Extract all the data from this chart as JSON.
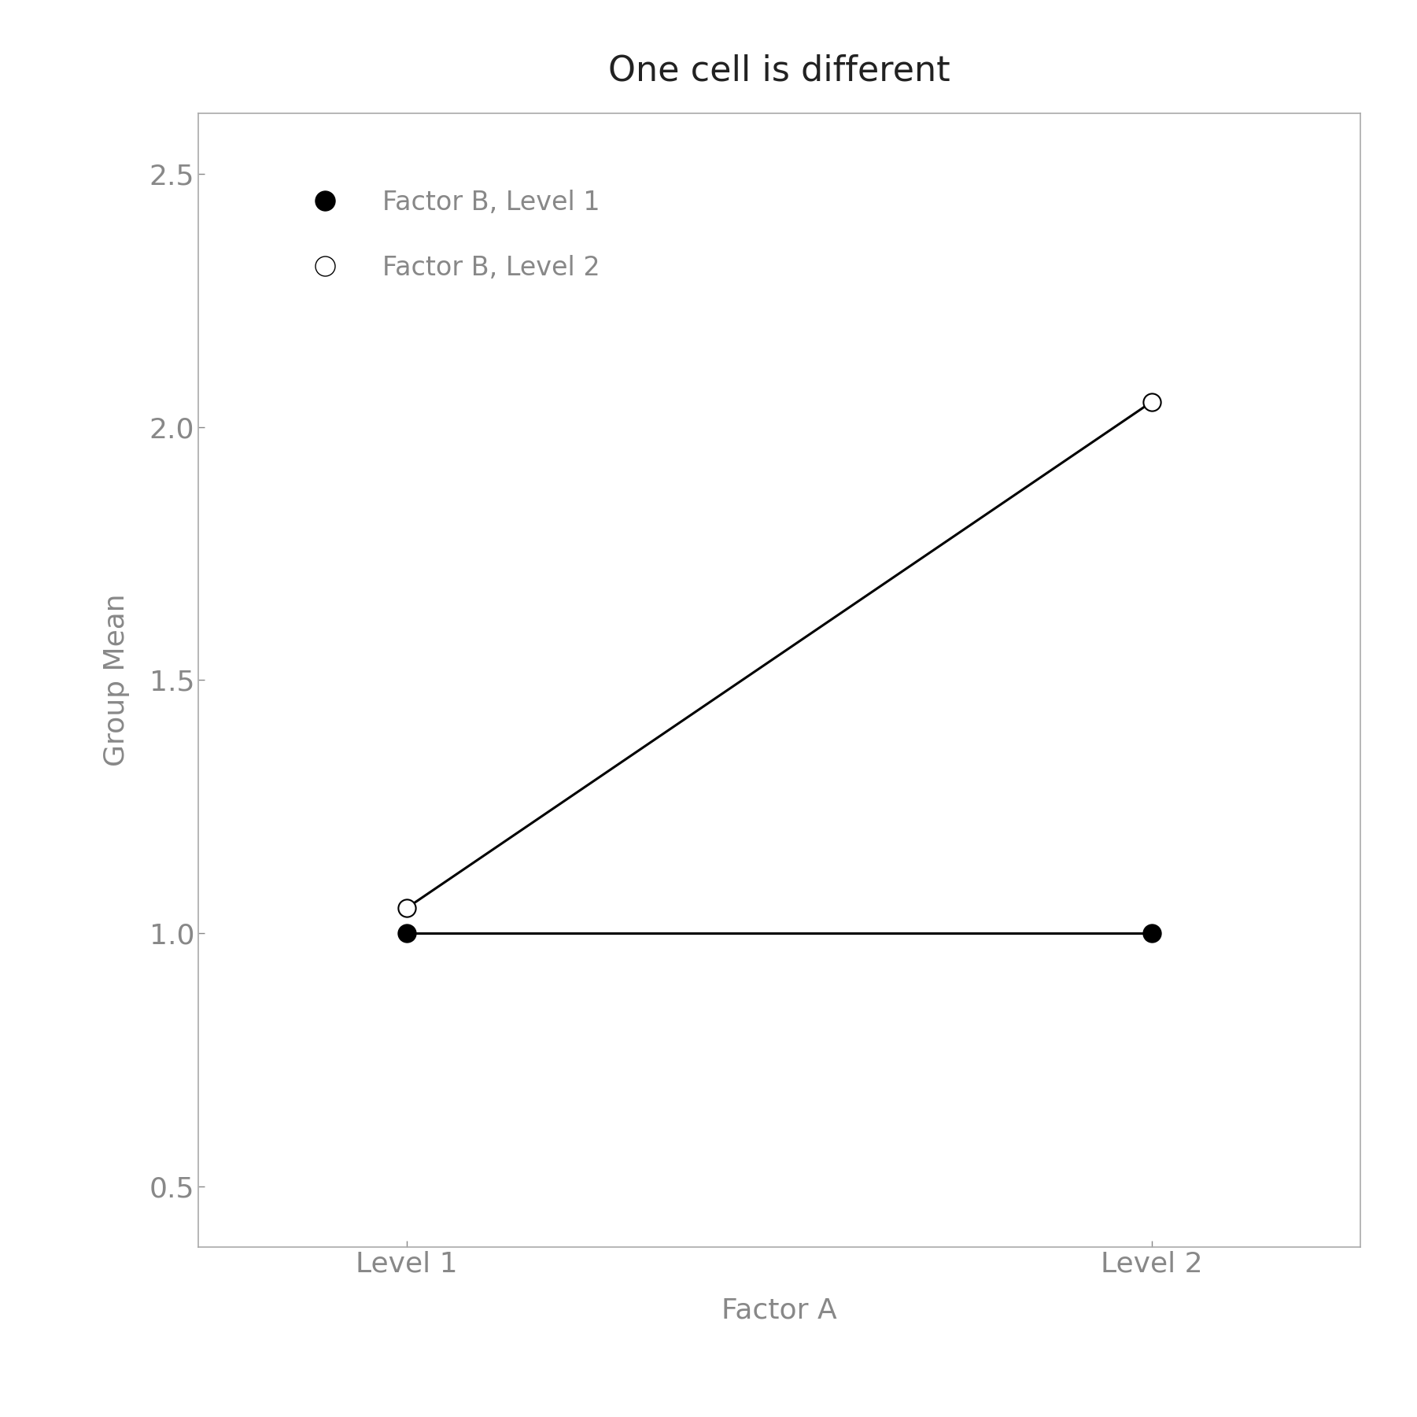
{
  "title": "One cell is different",
  "xlabel": "Factor A",
  "ylabel": "Group Mean",
  "x_labels": [
    "Level 1",
    "Level 2"
  ],
  "x_positions": [
    1,
    2
  ],
  "line1_label": "Factor B, Level 1",
  "line1_y": [
    1.0,
    1.0
  ],
  "line2_label": "Factor B, Level 2",
  "line2_y": [
    1.05,
    2.05
  ],
  "ylim": [
    0.38,
    2.62
  ],
  "xlim": [
    0.72,
    2.28
  ],
  "yticks": [
    0.5,
    1.0,
    1.5,
    2.0,
    2.5
  ],
  "ytick_labels": [
    "0.5",
    "1.0",
    "1.5",
    "2.0",
    "2.5"
  ],
  "background_color": "#ffffff",
  "plot_bg_color": "#ffffff",
  "spine_color": "#aaaaaa",
  "tick_color": "#888888",
  "label_color": "#888888",
  "title_color": "#222222",
  "title_fontsize": 32,
  "axis_label_fontsize": 26,
  "tick_fontsize": 26,
  "legend_fontsize": 24,
  "marker_size": 16,
  "line_width": 2.2,
  "legend_marker_size": 18
}
